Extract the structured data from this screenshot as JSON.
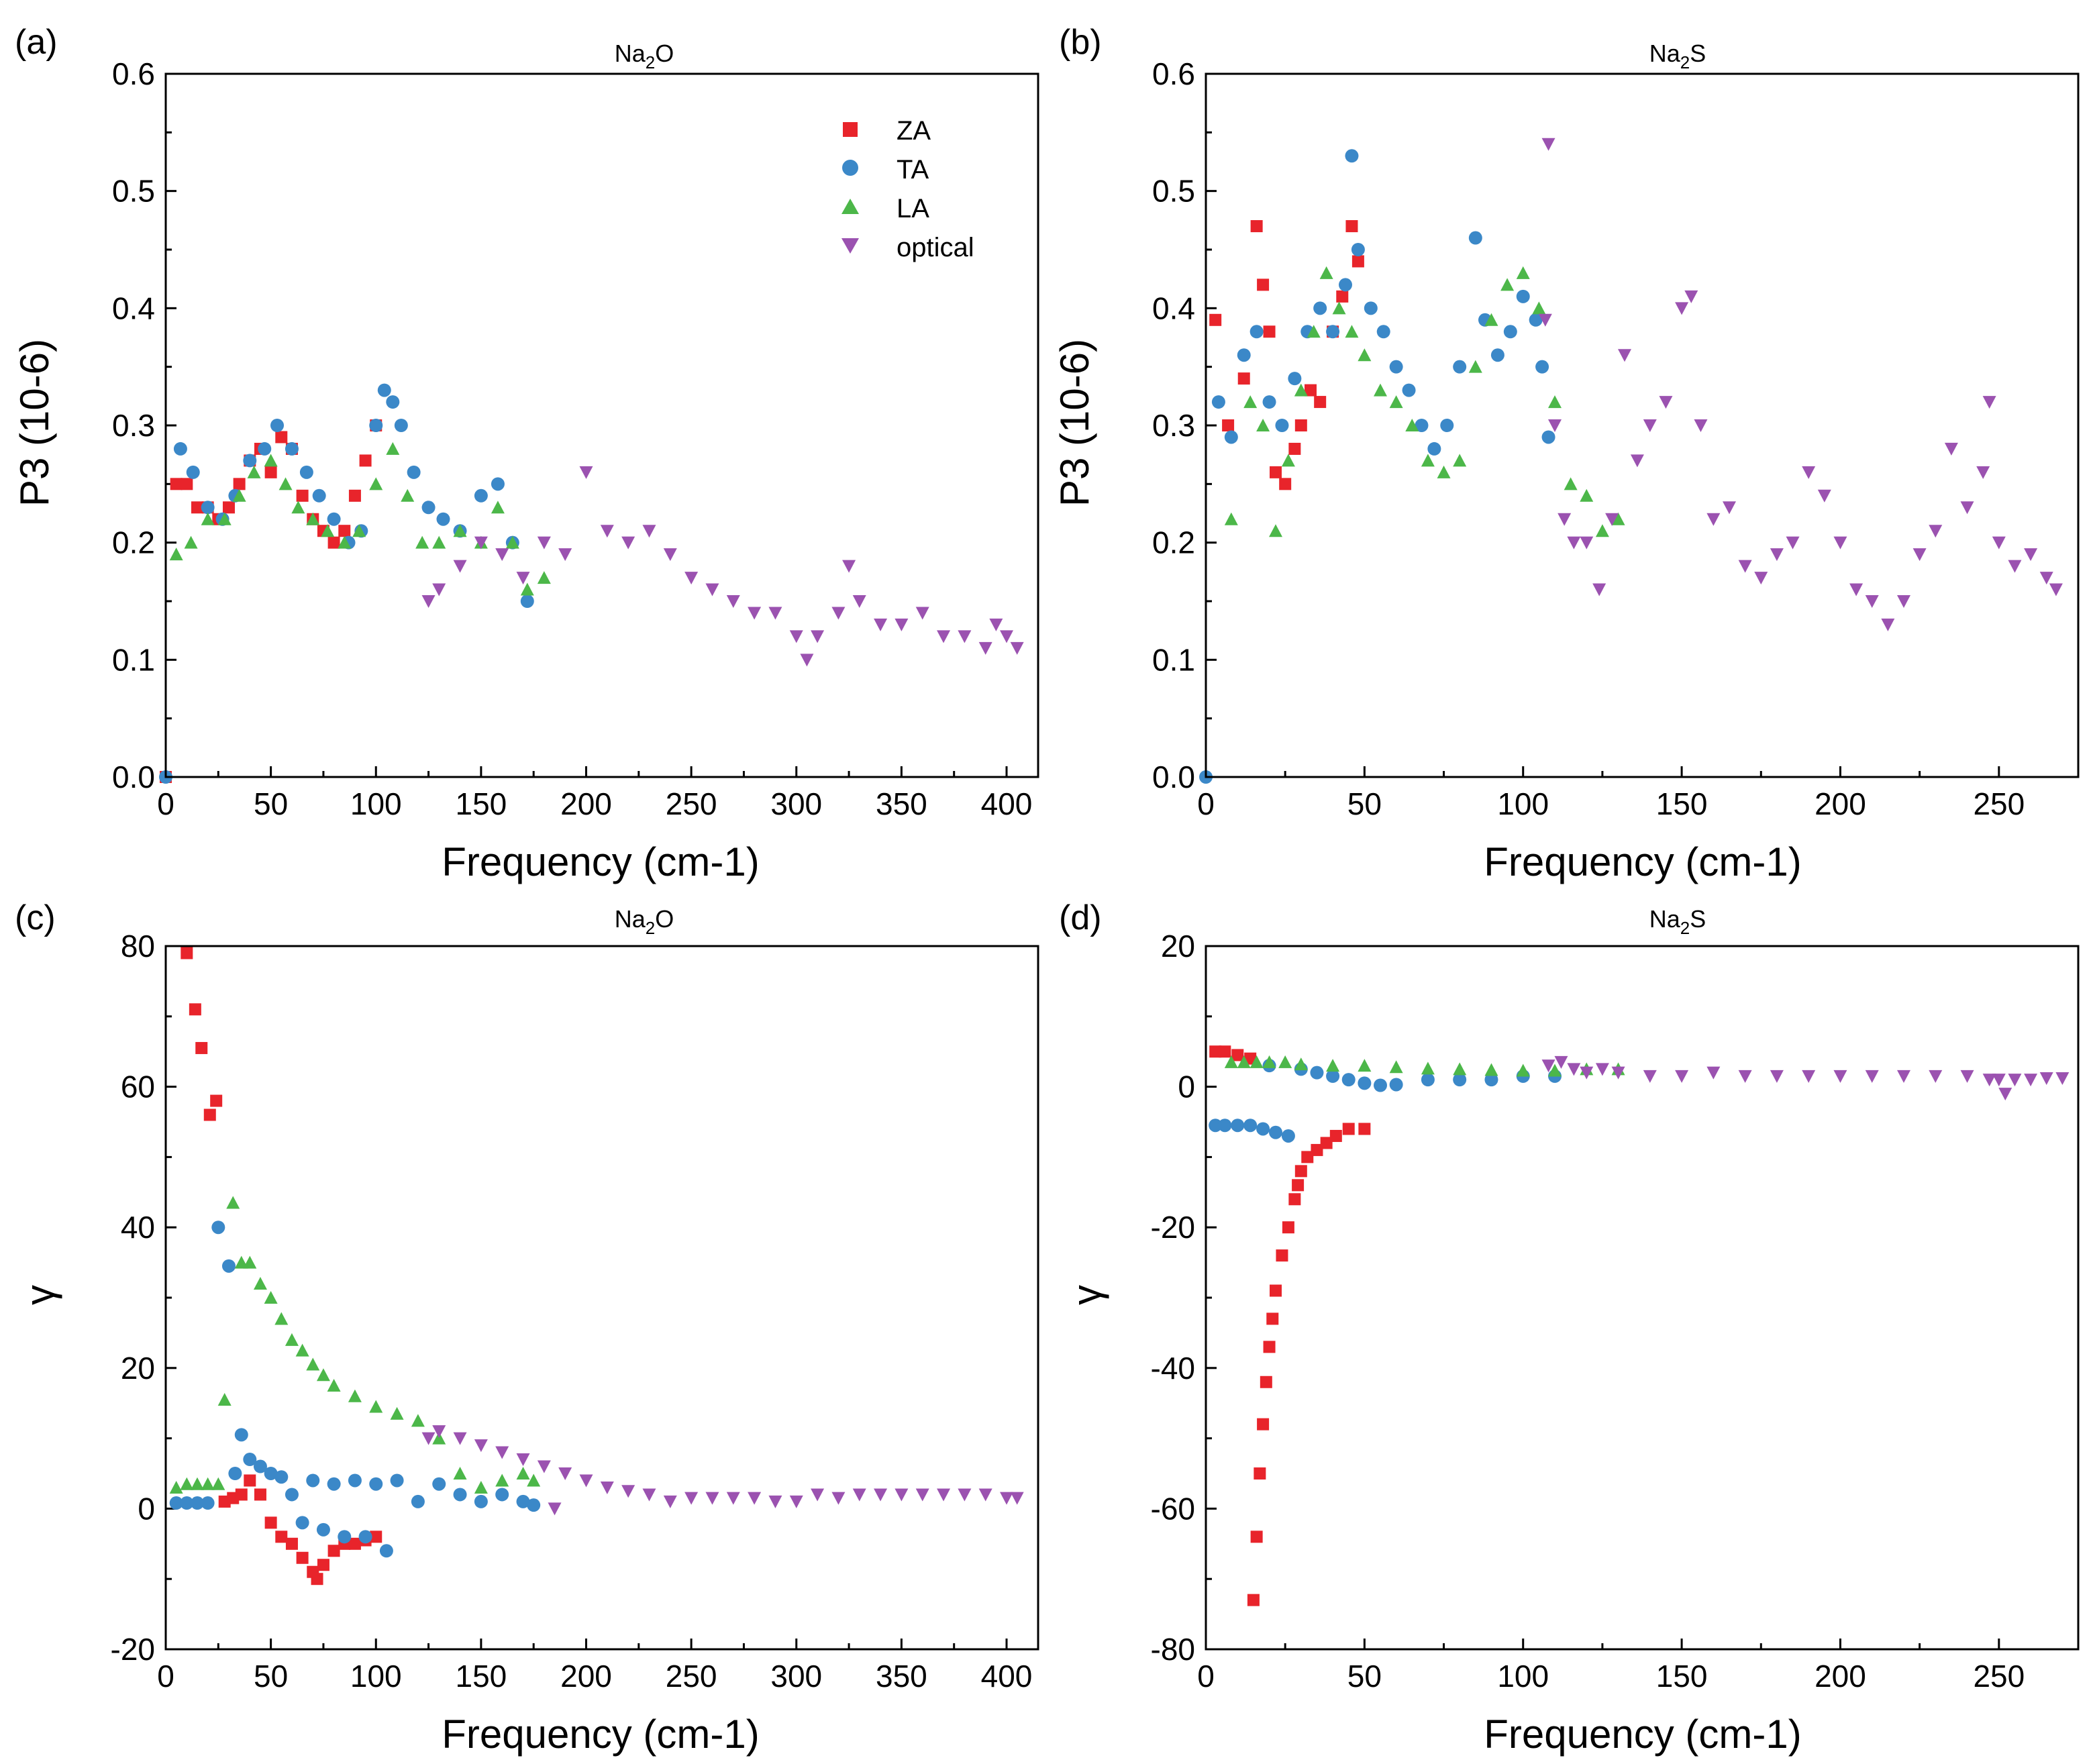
{
  "colors": {
    "ZA": "#e8242b",
    "TA": "#3b88c8",
    "LA": "#4cb749",
    "optical": "#9b52b0"
  },
  "legend": {
    "entries": [
      {
        "key": "ZA",
        "label": "ZA",
        "marker": "square"
      },
      {
        "key": "TA",
        "label": "TA",
        "marker": "circle"
      },
      {
        "key": "LA",
        "label": "LA",
        "marker": "triangle-up"
      },
      {
        "key": "optical",
        "label": "optical",
        "marker": "triangle-down"
      }
    ]
  },
  "chart_data": [
    {
      "id": "a",
      "panel_label": "(a)",
      "type": "scatter",
      "title": "Na2O",
      "title_parts": [
        "Na",
        "2",
        "O"
      ],
      "xlabel": "Frequency (cm-1)",
      "ylabel": "P3 (10-6)",
      "xlim": [
        0,
        415
      ],
      "ylim": [
        0,
        0.6
      ],
      "xticks": [
        0,
        50,
        100,
        150,
        200,
        250,
        300,
        350,
        400
      ],
      "yticks": [
        0.0,
        0.1,
        0.2,
        0.3,
        0.4,
        0.5,
        0.6
      ],
      "ytick_labels": [
        "0.0",
        "0.1",
        "0.2",
        "0.3",
        "0.4",
        "0.5",
        "0.6"
      ],
      "legend_position": "top-right",
      "series": [
        {
          "name": "ZA",
          "x": [
            0,
            5,
            10,
            15,
            20,
            25,
            30,
            35,
            40,
            45,
            50,
            55,
            60,
            65,
            70,
            75,
            80,
            85,
            90,
            95,
            100
          ],
          "y": [
            0.0,
            0.25,
            0.25,
            0.23,
            0.23,
            0.22,
            0.23,
            0.25,
            0.27,
            0.28,
            0.26,
            0.29,
            0.28,
            0.24,
            0.22,
            0.21,
            0.2,
            0.21,
            0.24,
            0.27,
            0.3
          ]
        },
        {
          "name": "TA",
          "x": [
            0,
            7,
            13,
            20,
            27,
            33,
            40,
            47,
            53,
            60,
            67,
            73,
            80,
            87,
            93,
            100,
            104,
            108,
            112,
            118,
            125,
            132,
            140,
            150,
            158,
            165,
            172
          ],
          "y": [
            0.0,
            0.28,
            0.26,
            0.23,
            0.22,
            0.24,
            0.27,
            0.28,
            0.3,
            0.28,
            0.26,
            0.24,
            0.22,
            0.2,
            0.21,
            0.3,
            0.33,
            0.32,
            0.3,
            0.26,
            0.23,
            0.22,
            0.21,
            0.24,
            0.25,
            0.2,
            0.15
          ]
        },
        {
          "name": "LA",
          "x": [
            5,
            12,
            20,
            28,
            35,
            42,
            50,
            57,
            63,
            70,
            77,
            85,
            92,
            100,
            108,
            115,
            122,
            130,
            140,
            150,
            158,
            165,
            172,
            180
          ],
          "y": [
            0.19,
            0.2,
            0.22,
            0.22,
            0.24,
            0.26,
            0.27,
            0.25,
            0.23,
            0.22,
            0.21,
            0.2,
            0.21,
            0.25,
            0.28,
            0.24,
            0.2,
            0.2,
            0.21,
            0.2,
            0.23,
            0.2,
            0.16,
            0.17
          ]
        },
        {
          "name": "optical",
          "x": [
            125,
            130,
            140,
            150,
            160,
            170,
            180,
            190,
            200,
            210,
            220,
            230,
            240,
            250,
            260,
            270,
            280,
            290,
            300,
            305,
            310,
            320,
            325,
            330,
            340,
            350,
            360,
            370,
            380,
            390,
            395,
            400,
            405
          ],
          "y": [
            0.15,
            0.16,
            0.18,
            0.2,
            0.19,
            0.17,
            0.2,
            0.19,
            0.26,
            0.21,
            0.2,
            0.21,
            0.19,
            0.17,
            0.16,
            0.15,
            0.14,
            0.14,
            0.12,
            0.1,
            0.12,
            0.14,
            0.18,
            0.15,
            0.13,
            0.13,
            0.14,
            0.12,
            0.12,
            0.11,
            0.13,
            0.12,
            0.11
          ]
        }
      ]
    },
    {
      "id": "b",
      "panel_label": "(b)",
      "type": "scatter",
      "title": "Na2S",
      "title_parts": [
        "Na",
        "2",
        "S"
      ],
      "xlabel": "Frequency (cm-1)",
      "ylabel": "P3 (10-6)",
      "xlim": [
        0,
        275
      ],
      "ylim": [
        0,
        0.6
      ],
      "xticks": [
        0,
        50,
        100,
        150,
        200,
        250
      ],
      "yticks": [
        0.0,
        0.1,
        0.2,
        0.3,
        0.4,
        0.5,
        0.6
      ],
      "ytick_labels": [
        "0.0",
        "0.1",
        "0.2",
        "0.3",
        "0.4",
        "0.5",
        "0.6"
      ],
      "series": [
        {
          "name": "ZA",
          "x": [
            3,
            7,
            12,
            16,
            18,
            20,
            22,
            25,
            28,
            30,
            33,
            36,
            40,
            43,
            46,
            48
          ],
          "y": [
            0.39,
            0.3,
            0.34,
            0.47,
            0.42,
            0.38,
            0.26,
            0.25,
            0.28,
            0.3,
            0.33,
            0.32,
            0.38,
            0.41,
            0.47,
            0.44
          ]
        },
        {
          "name": "TA",
          "x": [
            0,
            4,
            8,
            12,
            16,
            20,
            24,
            28,
            32,
            36,
            40,
            44,
            46,
            48,
            52,
            56,
            60,
            64,
            68,
            72,
            76,
            80,
            85,
            88,
            92,
            96,
            100,
            104,
            106,
            108
          ],
          "y": [
            0.0,
            0.32,
            0.29,
            0.36,
            0.38,
            0.32,
            0.3,
            0.34,
            0.38,
            0.4,
            0.38,
            0.42,
            0.53,
            0.45,
            0.4,
            0.38,
            0.35,
            0.33,
            0.3,
            0.28,
            0.3,
            0.35,
            0.46,
            0.39,
            0.36,
            0.38,
            0.41,
            0.39,
            0.35,
            0.29
          ]
        },
        {
          "name": "LA",
          "x": [
            8,
            14,
            18,
            22,
            26,
            30,
            34,
            38,
            42,
            46,
            50,
            55,
            60,
            65,
            70,
            75,
            80,
            85,
            90,
            95,
            100,
            105,
            110,
            115,
            120,
            125,
            130
          ],
          "y": [
            0.22,
            0.32,
            0.3,
            0.21,
            0.27,
            0.33,
            0.38,
            0.43,
            0.4,
            0.38,
            0.36,
            0.33,
            0.32,
            0.3,
            0.27,
            0.26,
            0.27,
            0.35,
            0.39,
            0.42,
            0.43,
            0.4,
            0.32,
            0.25,
            0.24,
            0.21,
            0.22
          ]
        },
        {
          "name": "optical",
          "x": [
            107,
            108,
            110,
            113,
            116,
            120,
            124,
            128,
            132,
            136,
            140,
            145,
            150,
            153,
            156,
            160,
            165,
            170,
            175,
            180,
            185,
            190,
            195,
            200,
            205,
            210,
            215,
            220,
            225,
            230,
            235,
            240,
            245,
            247,
            250,
            255,
            260,
            265,
            268
          ],
          "y": [
            0.39,
            0.54,
            0.3,
            0.22,
            0.2,
            0.2,
            0.16,
            0.22,
            0.36,
            0.27,
            0.3,
            0.32,
            0.4,
            0.41,
            0.3,
            0.22,
            0.23,
            0.18,
            0.17,
            0.19,
            0.2,
            0.26,
            0.24,
            0.2,
            0.16,
            0.15,
            0.13,
            0.15,
            0.19,
            0.21,
            0.28,
            0.23,
            0.26,
            0.32,
            0.2,
            0.18,
            0.19,
            0.17,
            0.16
          ]
        }
      ]
    },
    {
      "id": "c",
      "panel_label": "(c)",
      "type": "scatter",
      "title": "Na2O",
      "title_parts": [
        "Na",
        "2",
        "O"
      ],
      "xlabel": "Frequency (cm-1)",
      "ylabel": "γ",
      "xlim": [
        0,
        415
      ],
      "ylim": [
        -20,
        80
      ],
      "xticks": [
        0,
        50,
        100,
        150,
        200,
        250,
        300,
        350,
        400
      ],
      "yticks": [
        -20,
        0,
        20,
        40,
        60,
        80
      ],
      "ytick_labels": [
        "-20",
        "0",
        "20",
        "40",
        "60",
        "80"
      ],
      "series": [
        {
          "name": "ZA",
          "x": [
            10,
            14,
            17,
            21,
            24,
            28,
            32,
            36,
            40,
            45,
            50,
            55,
            60,
            65,
            70,
            72,
            75,
            80,
            85,
            90,
            95,
            100
          ],
          "y": [
            79,
            71,
            65.5,
            56,
            58,
            1,
            1.5,
            2,
            4,
            2,
            -2,
            -4,
            -5,
            -7,
            -9,
            -10,
            -8,
            -6,
            -5,
            -5,
            -4.5,
            -4
          ]
        },
        {
          "name": "TA",
          "x": [
            5,
            10,
            15,
            20,
            25,
            30,
            33,
            36,
            40,
            45,
            50,
            55,
            60,
            65,
            70,
            75,
            80,
            85,
            90,
            95,
            100,
            105,
            110,
            120,
            130,
            140,
            150,
            160,
            170,
            175
          ],
          "y": [
            0.8,
            0.8,
            0.8,
            0.8,
            40,
            34.5,
            5,
            10.5,
            7,
            6,
            5,
            4.5,
            2,
            -2,
            4,
            -3,
            3.5,
            -4,
            4,
            -4,
            3.5,
            -6,
            4,
            1,
            3.5,
            2,
            1,
            2,
            1,
            0.5
          ]
        },
        {
          "name": "LA",
          "x": [
            5,
            10,
            15,
            20,
            25,
            28,
            32,
            36,
            40,
            45,
            50,
            55,
            60,
            65,
            70,
            75,
            80,
            90,
            100,
            110,
            120,
            130,
            140,
            150,
            160,
            170,
            175
          ],
          "y": [
            3,
            3.5,
            3.5,
            3.5,
            3.5,
            15.5,
            43.5,
            35,
            35,
            32,
            30,
            27,
            24,
            22.5,
            20.5,
            19,
            17.5,
            16,
            14.5,
            13.5,
            12.5,
            10,
            5,
            3,
            4,
            5,
            4
          ]
        },
        {
          "name": "optical",
          "x": [
            125,
            130,
            140,
            150,
            160,
            170,
            180,
            185,
            190,
            200,
            210,
            220,
            230,
            240,
            250,
            260,
            270,
            280,
            290,
            300,
            310,
            320,
            330,
            340,
            350,
            360,
            370,
            380,
            390,
            400,
            405
          ],
          "y": [
            10,
            11,
            10,
            9,
            8,
            7,
            6,
            0,
            5,
            4,
            3,
            2.5,
            2,
            1,
            1.5,
            1.5,
            1.5,
            1.5,
            1,
            1,
            2,
            1.5,
            2,
            2,
            2,
            2,
            2,
            2,
            2,
            1.5,
            1.5
          ]
        }
      ]
    },
    {
      "id": "d",
      "panel_label": "(d)",
      "type": "scatter",
      "title": "Na2S",
      "title_parts": [
        "Na",
        "2",
        "S"
      ],
      "xlabel": "Frequency (cm-1)",
      "ylabel": "γ",
      "xlim": [
        0,
        275
      ],
      "ylim": [
        -80,
        20
      ],
      "xticks": [
        0,
        50,
        100,
        150,
        200,
        250
      ],
      "yticks": [
        -80,
        -60,
        -40,
        -20,
        0,
        20
      ],
      "ytick_labels": [
        "-80",
        "-60",
        "-40",
        "-20",
        "0",
        "20"
      ],
      "series": [
        {
          "name": "ZA",
          "x": [
            3,
            6,
            10,
            14,
            15,
            16,
            17,
            18,
            19,
            20,
            21,
            22,
            24,
            26,
            28,
            29,
            30,
            32,
            35,
            38,
            41,
            45,
            50
          ],
          "y": [
            5,
            5,
            4.5,
            4,
            -73,
            -64,
            -55,
            -48,
            -42,
            -37,
            -33,
            -29,
            -24,
            -20,
            -16,
            -14,
            -12,
            -10,
            -9,
            -8,
            -7,
            -6,
            -6
          ]
        },
        {
          "name": "TA",
          "x": [
            3,
            6,
            10,
            14,
            18,
            22,
            26,
            20,
            30,
            35,
            40,
            45,
            50,
            55,
            60,
            70,
            80,
            90,
            100,
            110
          ],
          "y": [
            -5.5,
            -5.5,
            -5.5,
            -5.5,
            -6,
            -6.5,
            -7,
            3,
            2.5,
            2,
            1.5,
            1,
            0.5,
            0.2,
            0.3,
            1,
            1,
            1,
            1.5,
            1.5
          ]
        },
        {
          "name": "LA",
          "x": [
            8,
            12,
            16,
            20,
            25,
            30,
            40,
            50,
            60,
            70,
            80,
            90,
            100,
            110,
            120,
            130
          ],
          "y": [
            3.5,
            3.5,
            3.5,
            3.5,
            3.5,
            3.2,
            3,
            3,
            2.8,
            2.6,
            2.5,
            2.4,
            2.3,
            2.3,
            2.5,
            2.5
          ]
        },
        {
          "name": "optical",
          "x": [
            108,
            112,
            116,
            120,
            125,
            130,
            140,
            150,
            160,
            170,
            180,
            190,
            200,
            210,
            220,
            230,
            240,
            247,
            250,
            252,
            255,
            260,
            265,
            270
          ],
          "y": [
            3,
            3.5,
            2.5,
            2,
            2.5,
            2,
            1.5,
            1.5,
            2,
            1.5,
            1.5,
            1.5,
            1.5,
            1.5,
            1.5,
            1.5,
            1.5,
            1,
            1,
            -1,
            1,
            1,
            1.2,
            1.2
          ]
        }
      ]
    }
  ]
}
